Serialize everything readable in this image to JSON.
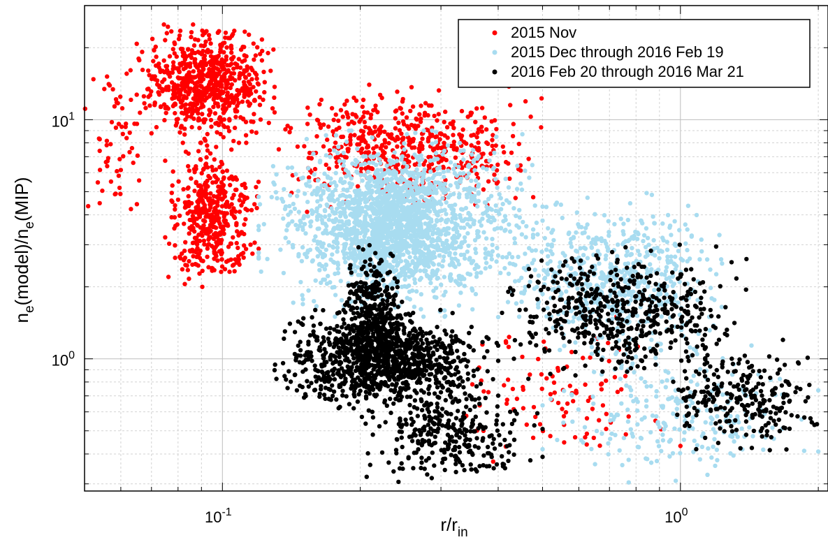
{
  "chart_data": {
    "type": "scatter",
    "title": "",
    "xlabel": "r/r",
    "xlabel_sub": "in",
    "ylabel_parts": [
      "n",
      "e",
      "(model)/n",
      "e",
      "(MIP)"
    ],
    "xscale": "log",
    "yscale": "log",
    "xlim": [
      0.05,
      2.1
    ],
    "ylim": [
      0.28,
      30
    ],
    "grid": true,
    "legend_position": "top-right",
    "x_ticks": [
      {
        "value": 0.1,
        "base": "10",
        "exp": "-1"
      },
      {
        "value": 1,
        "base": "10",
        "exp": "0"
      }
    ],
    "y_ticks": [
      {
        "value": 1,
        "base": "10",
        "exp": "0"
      },
      {
        "value": 10,
        "base": "10",
        "exp": "1"
      }
    ],
    "series": [
      {
        "name": "2015 Nov",
        "color": "#ff0000",
        "clusters": [
          {
            "x": [
              0.065,
              0.13
            ],
            "y": [
              8,
              25
            ],
            "n": 700
          },
          {
            "x": [
              0.075,
              0.12
            ],
            "y": [
              2,
              8
            ],
            "n": 450
          },
          {
            "x": [
              0.05,
              0.07
            ],
            "y": [
              3,
              22
            ],
            "n": 60
          },
          {
            "x": [
              0.13,
              0.5
            ],
            "y": [
              4,
              14
            ],
            "n": 550
          },
          {
            "x": [
              0.3,
              1.0
            ],
            "y": [
              0.35,
              1.5
            ],
            "n": 100
          }
        ]
      },
      {
        "name": "2015 Dec through 2016 Feb 19",
        "color": "#a8dcf0",
        "clusters": [
          {
            "x": [
              0.12,
              0.5
            ],
            "y": [
              1.5,
              9
            ],
            "n": 1500
          },
          {
            "x": [
              0.18,
              0.3
            ],
            "y": [
              2,
              7
            ],
            "n": 600
          },
          {
            "x": [
              0.4,
              1.3
            ],
            "y": [
              1,
              5
            ],
            "n": 600
          },
          {
            "x": [
              0.5,
              2.0
            ],
            "y": [
              0.3,
              1.2
            ],
            "n": 250
          }
        ]
      },
      {
        "name": "2016 Feb 20 through 2016 Mar 21",
        "color": "#000000",
        "clusters": [
          {
            "x": [
              0.13,
              0.4
            ],
            "y": [
              0.6,
              1.6
            ],
            "n": 1000
          },
          {
            "x": [
              0.18,
              0.25
            ],
            "y": [
              0.8,
              3
            ],
            "n": 350
          },
          {
            "x": [
              0.2,
              0.5
            ],
            "y": [
              0.3,
              0.8
            ],
            "n": 300
          },
          {
            "x": [
              0.4,
              1.4
            ],
            "y": [
              0.8,
              3
            ],
            "n": 500
          },
          {
            "x": [
              0.9,
              2.1
            ],
            "y": [
              0.4,
              1.2
            ],
            "n": 250
          }
        ]
      }
    ]
  }
}
